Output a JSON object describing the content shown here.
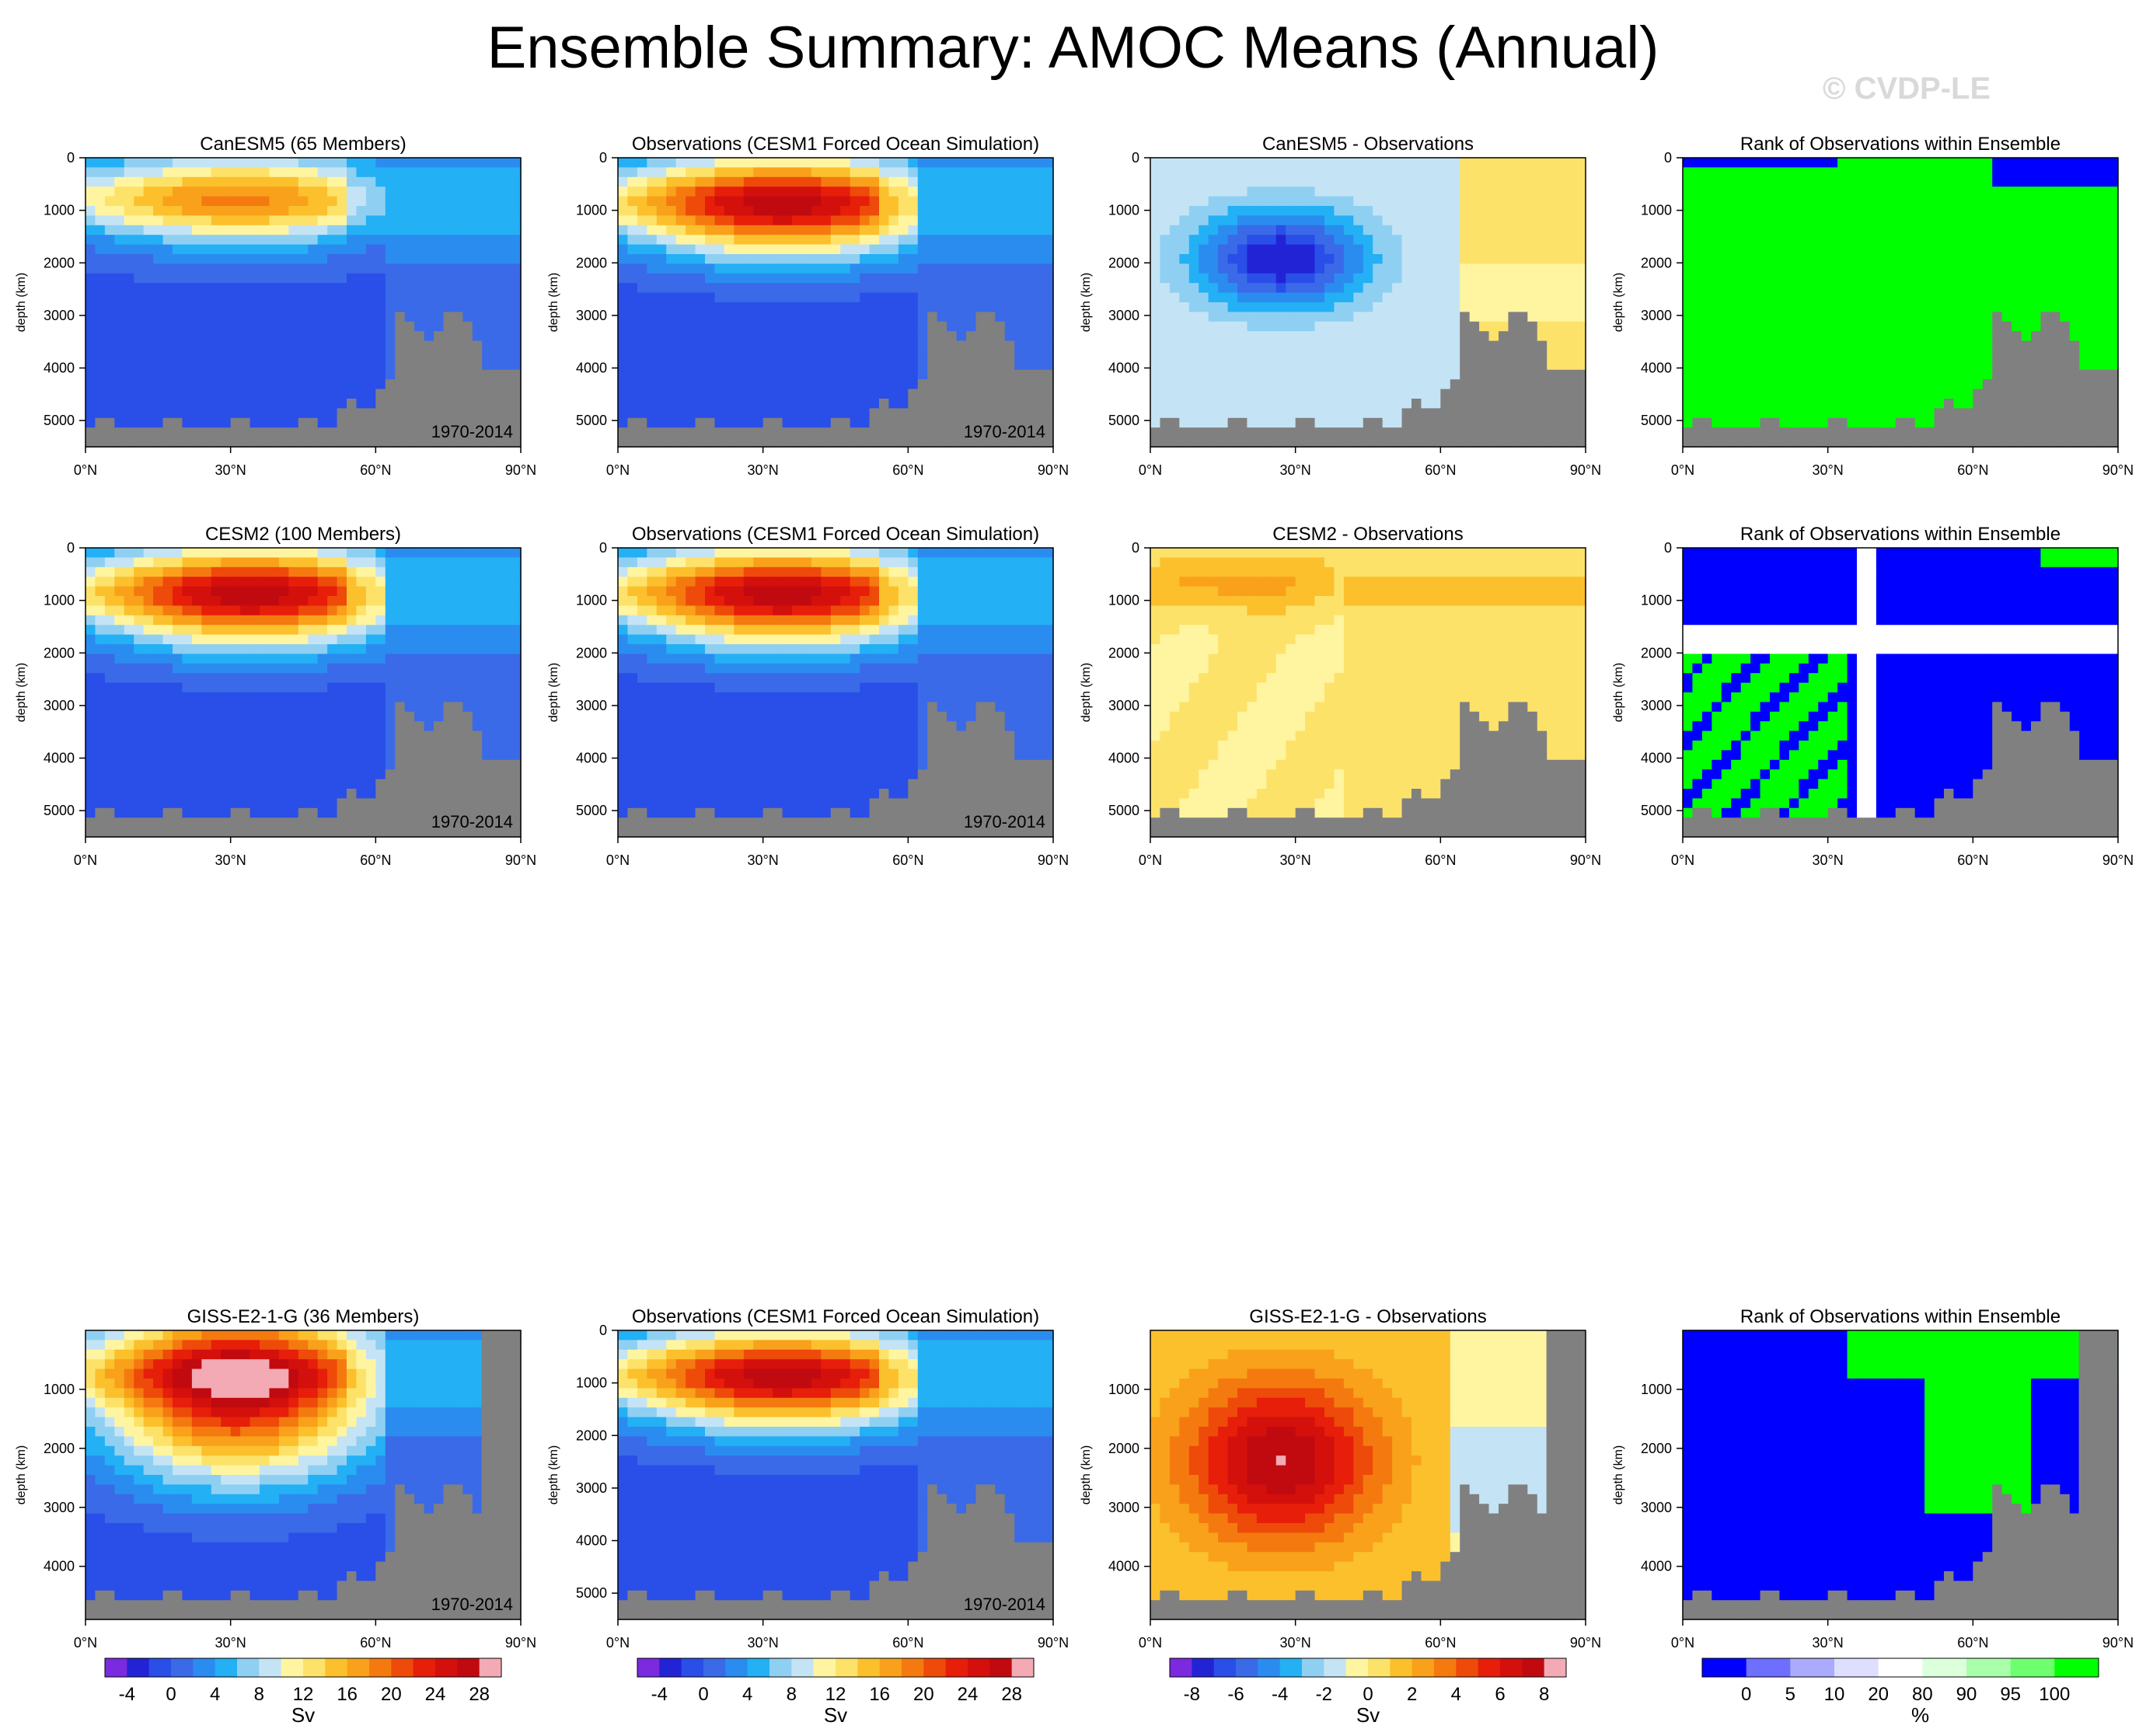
{
  "title": "Ensemble Summary: AMOC Means (Annual)",
  "watermark": "© CVDP-LE",
  "chart_data": [
    {
      "type": "heatmap",
      "rows": [
        {
          "panels": [
            {
              "title": "CanESM5 (65 Members)",
              "kind": "mean",
              "period": "1970-2014",
              "variant": "canesm5"
            },
            {
              "title": "Observations (CESM1 Forced Ocean Simulation)",
              "kind": "mean",
              "period": "1970-2014",
              "variant": "obs"
            },
            {
              "title": "CanESM5 - Observations",
              "kind": "diff",
              "period": "",
              "variant": "canesm5_diff"
            },
            {
              "title": "Rank of Observations within Ensemble",
              "kind": "rank",
              "period": "",
              "variant": "canesm5_rank"
            }
          ]
        },
        {
          "panels": [
            {
              "title": "CESM2 (100 Members)",
              "kind": "mean",
              "period": "1970-2014",
              "variant": "cesm2"
            },
            {
              "title": "Observations (CESM1 Forced Ocean Simulation)",
              "kind": "mean",
              "period": "1970-2014",
              "variant": "obs"
            },
            {
              "title": "CESM2 - Observations",
              "kind": "diff",
              "period": "",
              "variant": "cesm2_diff"
            },
            {
              "title": "Rank of Observations within Ensemble",
              "kind": "rank",
              "period": "",
              "variant": "cesm2_rank"
            }
          ]
        },
        {
          "panels": [
            {
              "title": "GISS-E2-1-G (36 Members)",
              "kind": "mean",
              "period": "1970-2014",
              "variant": "giss"
            },
            {
              "title": "Observations (CESM1 Forced Ocean Simulation)",
              "kind": "mean",
              "period": "1970-2014",
              "variant": "obs"
            },
            {
              "title": "GISS-E2-1-G - Observations",
              "kind": "diff",
              "period": "",
              "variant": "giss_diff"
            },
            {
              "title": "Rank of Observations within Ensemble",
              "kind": "rank",
              "period": "",
              "variant": "giss_rank"
            }
          ]
        }
      ],
      "xlabel": "",
      "ylabel": "depth (km)",
      "x_ticks": [
        "0°N",
        "30°N",
        "60°N",
        "90°N"
      ],
      "xlim": [
        0,
        90
      ],
      "y_ticks_rows_1_2": [
        "0",
        "1000",
        "2000",
        "3000",
        "4000",
        "5000"
      ],
      "y_ticks_row_3": [
        "1000",
        "2000",
        "3000",
        "4000"
      ],
      "y_ticks_row_3_obs": [
        "0",
        "1000",
        "2000",
        "3000",
        "4000",
        "5000"
      ],
      "colorbars": [
        {
          "unit": "Sv",
          "labels": [
            "-4",
            "0",
            "4",
            "8",
            "12",
            "16",
            "20",
            "24",
            "28"
          ],
          "colors": [
            "#7b2ae0",
            "#2323d6",
            "#2a4ee8",
            "#3a6ae8",
            "#2b8cf0",
            "#23b0f5",
            "#8fd0f2",
            "#c4e4f5",
            "#fff5a0",
            "#fde26a",
            "#fbc02c",
            "#f9a11a",
            "#f47a10",
            "#ee4a0a",
            "#e61e0a",
            "#d4100c",
            "#c00a10",
            "#f4aab5"
          ]
        },
        {
          "unit": "Sv",
          "labels": [
            "-4",
            "0",
            "4",
            "8",
            "12",
            "16",
            "20",
            "24",
            "28"
          ],
          "colors": [
            "#7b2ae0",
            "#2323d6",
            "#2a4ee8",
            "#3a6ae8",
            "#2b8cf0",
            "#23b0f5",
            "#8fd0f2",
            "#c4e4f5",
            "#fff5a0",
            "#fde26a",
            "#fbc02c",
            "#f9a11a",
            "#f47a10",
            "#ee4a0a",
            "#e61e0a",
            "#d4100c",
            "#c00a10",
            "#f4aab5"
          ]
        },
        {
          "unit": "Sv",
          "labels": [
            "-8",
            "-6",
            "-4",
            "-2",
            "0",
            "2",
            "4",
            "6",
            "8"
          ],
          "colors": [
            "#7b2ae0",
            "#2323d6",
            "#2a4ee8",
            "#3a6ae8",
            "#2b8cf0",
            "#23b0f5",
            "#8fd0f2",
            "#c4e4f5",
            "#fff5a0",
            "#fde26a",
            "#fbc02c",
            "#f9a11a",
            "#f47a10",
            "#ee4a0a",
            "#e61e0a",
            "#d4100c",
            "#c00a10",
            "#f4aab5"
          ]
        },
        {
          "unit": "%",
          "labels": [
            "0",
            "5",
            "10",
            "20",
            "80",
            "90",
            "95",
            "100"
          ],
          "colors": [
            "#0000ff",
            "#6e6eff",
            "#aaaaff",
            "#dedeff",
            "#ffffff",
            "#dcffdc",
            "#aaffaa",
            "#6eff6e",
            "#00ff00"
          ]
        }
      ]
    }
  ]
}
